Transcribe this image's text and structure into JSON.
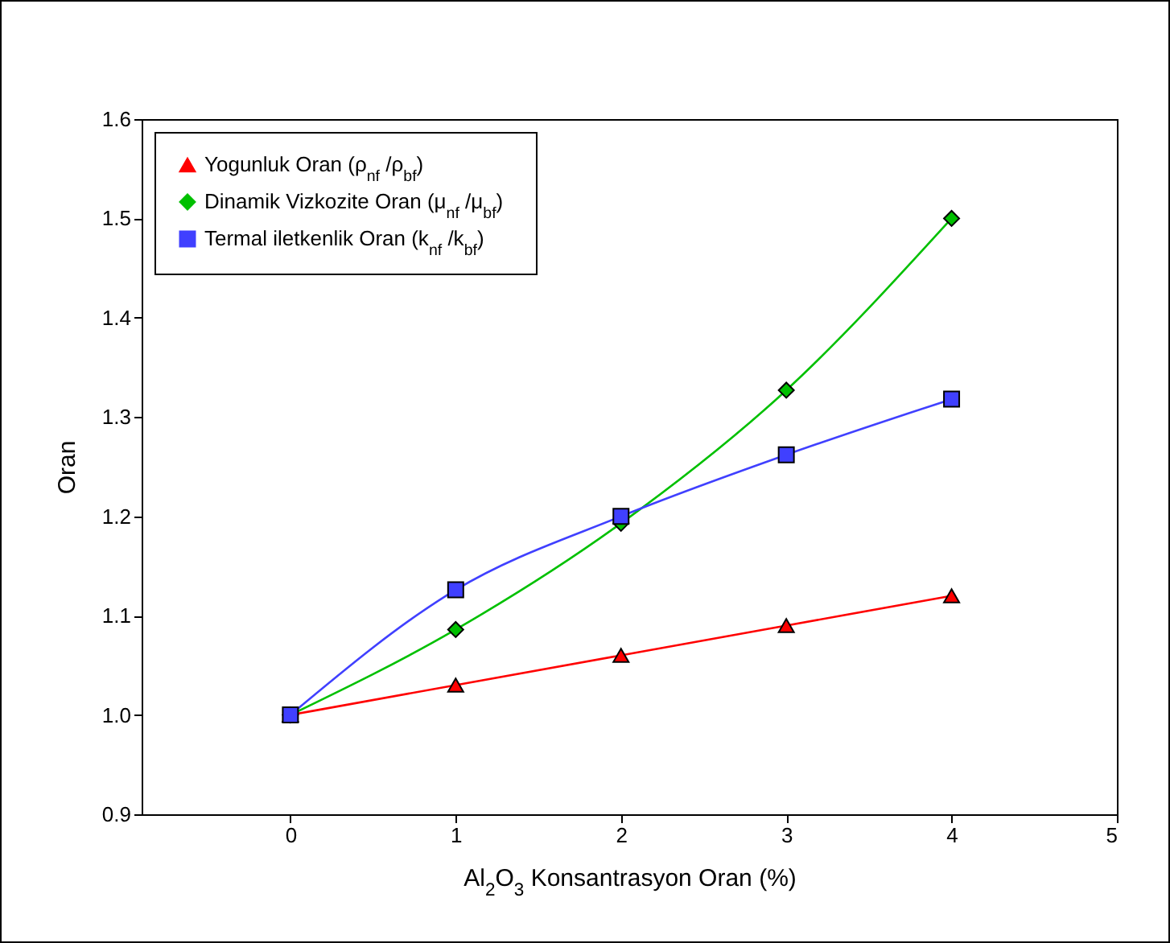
{
  "chart_data": {
    "type": "line",
    "xlabel": "Al$_{2}$O$_{3}$ Konsantrasyon Oran (%)",
    "ylabel": "Oran",
    "x": [
      0,
      1,
      2,
      3,
      4
    ],
    "series": [
      {
        "name": "Yogunluk Oran (ρ$_{nf}$ /ρ$_{bf}$)",
        "color": "#ff0000",
        "marker": "triangle",
        "values": [
          1.0,
          1.03,
          1.06,
          1.09,
          1.12
        ]
      },
      {
        "name": "Dinamik Vizkozite Oran (μ$_{nf}$ /μ$_{bf}$)",
        "color": "#00c000",
        "marker": "diamond",
        "values": [
          1.0,
          1.086,
          1.193,
          1.327,
          1.5
        ]
      },
      {
        "name": "Termal iletkenlik Oran (k$_{nf}$ /k$_{bf}$)",
        "color": "#4040ff",
        "marker": "square",
        "values": [
          1.0,
          1.126,
          1.2,
          1.262,
          1.318
        ]
      }
    ],
    "xlim": [
      -0.9,
      5
    ],
    "xticks": [
      0,
      1,
      2,
      3,
      4,
      5
    ],
    "ylim": [
      0.9,
      1.6
    ],
    "yticks": [
      0.9,
      {
        "value": 1,
        "label": "1.0"
      },
      1.1,
      1.2,
      1.3,
      1.4,
      1.5,
      1.6
    ],
    "grid": false,
    "legend": "top left",
    "line_style": "solid"
  }
}
